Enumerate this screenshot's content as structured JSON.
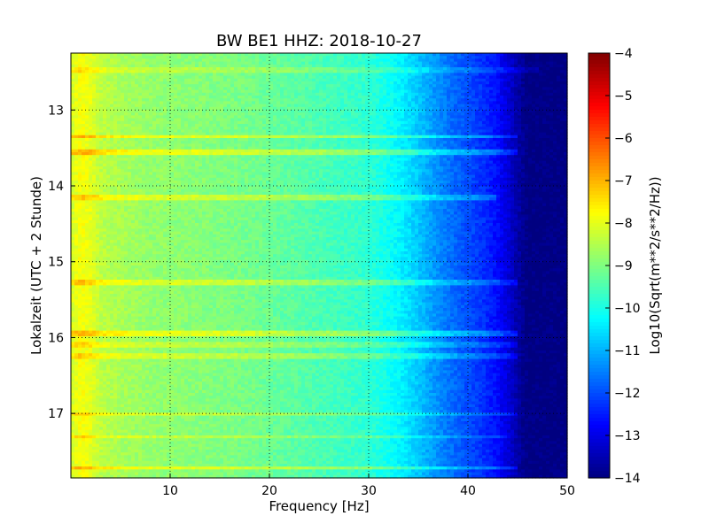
{
  "chart_data": {
    "type": "heatmap",
    "title": "BW BE1 HHZ: 2018-10-27",
    "xlabel": "Frequency [Hz]",
    "ylabel": "Lokalzeit (UTC + 2 Stunde)",
    "colorbar_label": "Log10(Sqrt(m**2/s**2/Hz))",
    "xlim": [
      0,
      50
    ],
    "ylim": [
      12.25,
      17.85
    ],
    "y_inverted": true,
    "x_ticks": [
      10,
      20,
      30,
      40,
      50
    ],
    "x_tick_labels": [
      "10",
      "20",
      "30",
      "40",
      "50"
    ],
    "y_ticks": [
      13,
      14,
      15,
      16,
      17
    ],
    "y_tick_labels": [
      "13",
      "14",
      "15",
      "16",
      "17"
    ],
    "clim": [
      -14,
      -4
    ],
    "colorbar_ticks": [
      -4,
      -5,
      -6,
      -7,
      -8,
      -9,
      -10,
      -11,
      -12,
      -13,
      -14
    ],
    "colorbar_tick_labels": [
      "−4",
      "−5",
      "−6",
      "−7",
      "−8",
      "−9",
      "−10",
      "−11",
      "−12",
      "−13",
      "−14"
    ],
    "colormap": "jet",
    "grid": true,
    "spectrum_profile": {
      "frequency_hz": [
        0,
        1,
        2,
        3,
        5,
        8,
        12,
        18,
        25,
        30,
        33,
        35,
        36,
        38,
        40,
        42,
        43,
        44,
        45,
        46,
        48,
        50
      ],
      "log10_amplitude": [
        -8.2,
        -7.8,
        -8.0,
        -8.4,
        -8.6,
        -8.8,
        -8.9,
        -9.1,
        -9.5,
        -9.8,
        -10.3,
        -10.8,
        -11.1,
        -11.6,
        -12.0,
        -12.4,
        -12.7,
        -13.1,
        -13.6,
        -14.0,
        -14.0,
        -14.0
      ]
    },
    "horizontal_bands": [
      {
        "time_h": 12.47,
        "strength": 0.5,
        "fmax_hz": 47
      },
      {
        "time_h": 13.35,
        "strength": 1.0,
        "fmax_hz": 45
      },
      {
        "time_h": 13.55,
        "strength": 1.0,
        "fmax_hz": 45
      },
      {
        "time_h": 14.15,
        "strength": 0.8,
        "fmax_hz": 43
      },
      {
        "time_h": 15.28,
        "strength": 0.8,
        "fmax_hz": 45
      },
      {
        "time_h": 15.95,
        "strength": 1.0,
        "fmax_hz": 45
      },
      {
        "time_h": 16.1,
        "strength": 0.6,
        "fmax_hz": 45
      },
      {
        "time_h": 16.25,
        "strength": 0.7,
        "fmax_hz": 45
      },
      {
        "time_h": 17.0,
        "strength": 0.7,
        "fmax_hz": 45
      },
      {
        "time_h": 17.3,
        "strength": 0.6,
        "fmax_hz": 44
      },
      {
        "time_h": 17.72,
        "strength": 1.0,
        "fmax_hz": 45
      }
    ]
  }
}
